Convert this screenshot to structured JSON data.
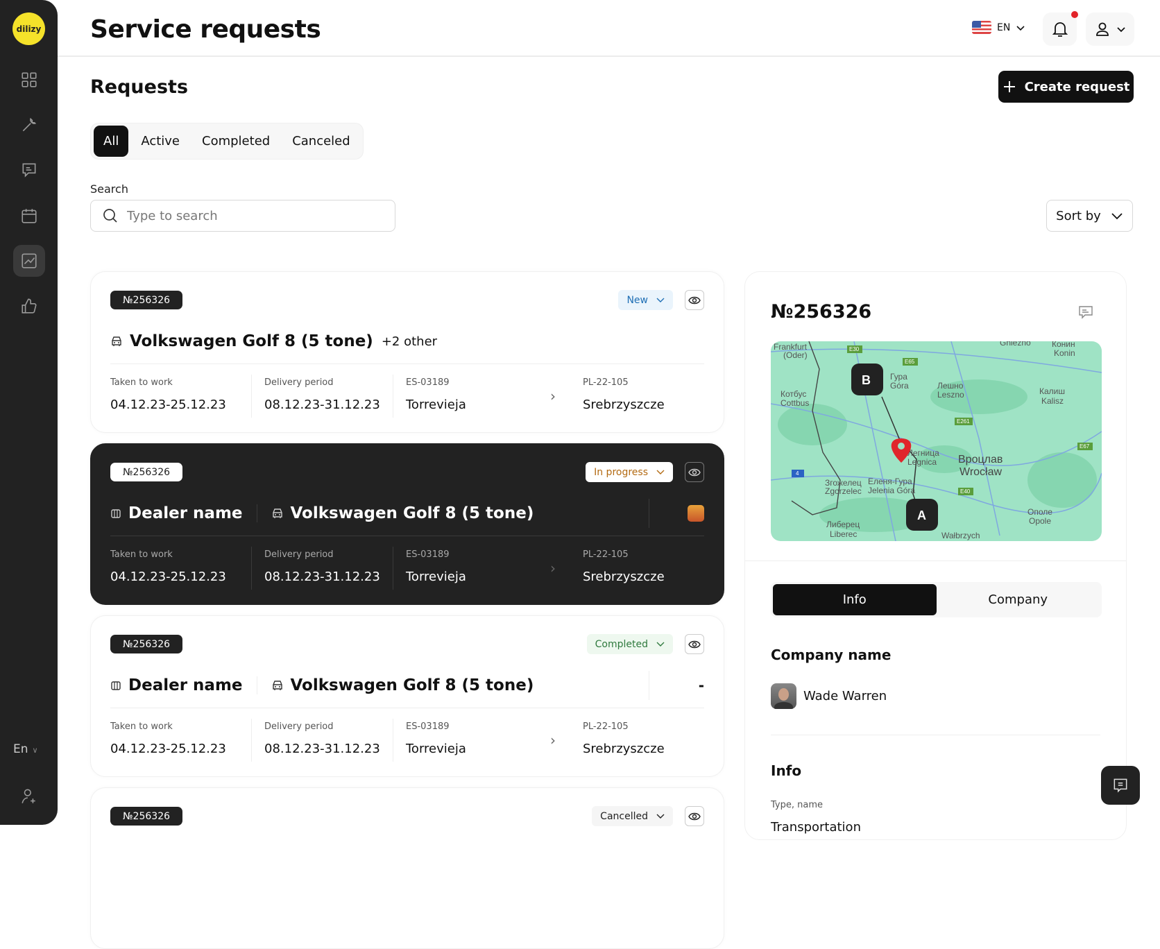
{
  "sidebar": {
    "logo": "dilizy",
    "items": [
      {
        "icon": "grid-icon"
      },
      {
        "icon": "wrench-icon"
      },
      {
        "icon": "message-icon"
      },
      {
        "icon": "calendar-icon"
      },
      {
        "icon": "chart-icon",
        "active": true
      },
      {
        "icon": "thumbs-up-icon"
      }
    ],
    "language": "En",
    "bottom_icon": "add-user-icon"
  },
  "header": {
    "title": "Service requests",
    "language": "EN",
    "notification_dot": true
  },
  "main": {
    "heading": "Requests",
    "create_label": "Create request",
    "tabs": [
      {
        "label": "All",
        "active": true
      },
      {
        "label": "Active"
      },
      {
        "label": "Completed"
      },
      {
        "label": "Canceled"
      }
    ],
    "search": {
      "label": "Search",
      "placeholder": "Type to search",
      "value": ""
    },
    "sort_label": "Sort by"
  },
  "cards": [
    {
      "number": "№256326",
      "status": "New",
      "status_color": "#1f6fb5",
      "status_bg": "#eaf4fc",
      "car": "Volkswagen Golf 8 (5 tone)",
      "other": "+2 other",
      "taken_label": "Taken to work",
      "taken": "04.12.23-25.12.23",
      "delivery_label": "Delivery period",
      "delivery": "08.12.23-31.12.23",
      "from_code": "ES-03189",
      "from": "Torrevieja",
      "to_code": "PL-22-105",
      "to": "Srebrzyszcze"
    },
    {
      "number": "№256326",
      "status": "In progress",
      "status_color": "#b36a12",
      "status_bg": "#ffffff",
      "dealer": "Dealer name",
      "car": "Volkswagen Golf 8 (5 tone)",
      "taken_label": "Taken to work",
      "taken": "04.12.23-25.12.23",
      "delivery_label": "Delivery period",
      "delivery": "08.12.23-31.12.23",
      "from_code": "ES-03189",
      "from": "Torrevieja",
      "to_code": "PL-22-105",
      "to": "Srebrzyszcze"
    },
    {
      "number": "№256326",
      "status": "Completed",
      "status_color": "#2f7a3e",
      "status_bg": "#eef8ef",
      "dealer": "Dealer name",
      "car": "Volkswagen Golf 8 (5 tone)",
      "assignee": "-",
      "taken_label": "Taken to work",
      "taken": "04.12.23-25.12.23",
      "delivery_label": "Delivery period",
      "delivery": "08.12.23-31.12.23",
      "from_code": "ES-03189",
      "from": "Torrevieja",
      "to_code": "PL-22-105",
      "to": "Srebrzyszcze"
    },
    {
      "number": "№256326",
      "status": "Cancelled",
      "status_color": "#222222",
      "status_bg": "#f5f5f5"
    }
  ],
  "panel": {
    "number": "№256326",
    "map": {
      "marker_a": "A",
      "marker_b": "B",
      "labels": [
        "Frankfurt (Oder)",
        "Gniezno",
        "Конин Konin",
        "Гура Góra",
        "Лешно Leszno",
        "Котбус Cottbus",
        "Калиш Kalisz",
        "Легница Legnica",
        "Вроцлав Wrocław",
        "Згожелец Zgorzelec",
        "Еленя-Гура Jelenia Góra",
        "Либерец Liberec",
        "Wałbrzych",
        "Ополе Opole",
        "E30",
        "E65",
        "E261",
        "E40",
        "E67",
        "4"
      ]
    },
    "tabs": [
      {
        "label": "Info",
        "active": true
      },
      {
        "label": "Company"
      }
    ],
    "company_heading": "Company name",
    "person": "Wade Warren",
    "info_heading": "Info",
    "type_label": "Type, name",
    "type_value": "Transportation"
  }
}
